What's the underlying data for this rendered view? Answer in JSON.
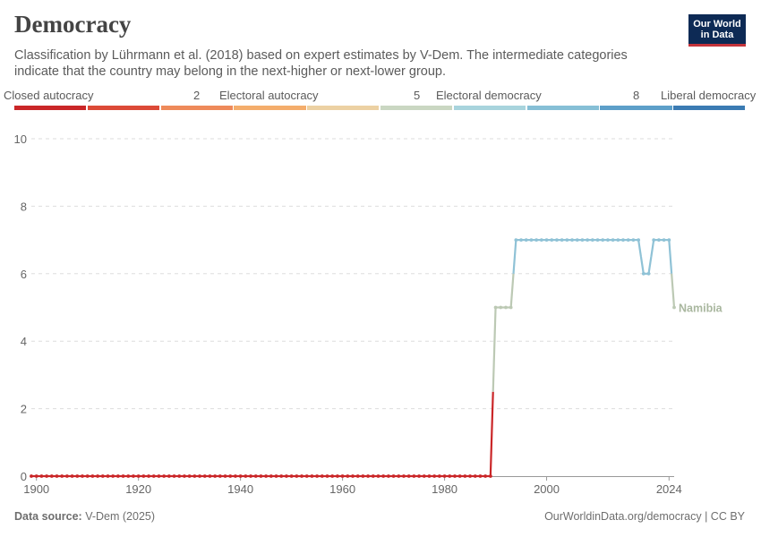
{
  "header": {
    "title": "Democracy",
    "subtitle": "Classification by Lührmann et al. (2018) based on expert estimates by V-Dem. The intermediate categories indicate that the country may belong in the next-higher or next-lower group.",
    "logo_line1": "Our World",
    "logo_line2": "in Data"
  },
  "legend": {
    "labels": [
      "Closed autocracy",
      "2",
      "Electoral autocracy",
      "5",
      "Electoral democracy",
      "8",
      "Liberal democracy"
    ],
    "colors": [
      "#ca2628",
      "#dc4a37",
      "#ee8a5a",
      "#f4ad6c",
      "#ecd1a3",
      "#cad7c2",
      "#a8d4dd",
      "#86bfd6",
      "#5d9fc9",
      "#3b7bb3"
    ]
  },
  "footer": {
    "source_label": "Data source:",
    "source_value": "V-Dem (2025)",
    "right": "OurWorldinData.org/democracy | CC BY"
  },
  "chart_data": {
    "type": "line",
    "title": "Democracy",
    "ylim": [
      0,
      10
    ],
    "xlim": [
      1900,
      2024
    ],
    "y_ticks": [
      0,
      2,
      4,
      6,
      8,
      10
    ],
    "x_ticks": [
      1900,
      1920,
      1940,
      1960,
      1980,
      2000,
      2024
    ],
    "grid": "horizontal dashed",
    "series": [
      {
        "name": "Namibia",
        "label_color": "#a9b79f",
        "points": [
          [
            1989,
            0
          ],
          [
            1990,
            5
          ],
          [
            1991,
            5
          ],
          [
            1992,
            5
          ],
          [
            1993,
            5
          ],
          [
            1994,
            7
          ],
          [
            1995,
            7
          ],
          [
            1996,
            7
          ],
          [
            1997,
            7
          ],
          [
            1998,
            7
          ],
          [
            1999,
            7
          ],
          [
            2000,
            7
          ],
          [
            2001,
            7
          ],
          [
            2002,
            7
          ],
          [
            2003,
            7
          ],
          [
            2004,
            7
          ],
          [
            2005,
            7
          ],
          [
            2006,
            7
          ],
          [
            2007,
            7
          ],
          [
            2008,
            7
          ],
          [
            2009,
            7
          ],
          [
            2010,
            7
          ],
          [
            2011,
            7
          ],
          [
            2012,
            7
          ],
          [
            2013,
            7
          ],
          [
            2014,
            7
          ],
          [
            2015,
            7
          ],
          [
            2016,
            7
          ],
          [
            2017,
            7
          ],
          [
            2018,
            7
          ],
          [
            2019,
            6
          ],
          [
            2020,
            6
          ],
          [
            2021,
            7
          ],
          [
            2022,
            7
          ],
          [
            2023,
            7
          ],
          [
            2024,
            7
          ],
          [
            2025,
            5
          ]
        ],
        "zero_from": 1899
      }
    ]
  }
}
